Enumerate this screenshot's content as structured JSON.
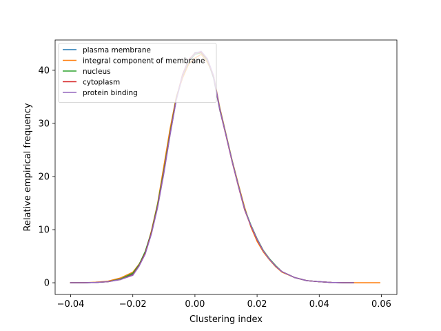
{
  "chart_data": {
    "type": "line",
    "title": "",
    "xlabel": "Clustering index",
    "ylabel": "Relative empirical frequency",
    "xlim": [
      -0.045,
      0.065
    ],
    "ylim": [
      -2.2,
      45.7
    ],
    "xticks": [
      -0.04,
      -0.02,
      0.0,
      0.02,
      0.04,
      0.06
    ],
    "xtick_labels": [
      "−0.04",
      "−0.02",
      "0.00",
      "0.02",
      "0.04",
      "0.06"
    ],
    "yticks": [
      0,
      10,
      20,
      30,
      40
    ],
    "ytick_labels": [
      "0",
      "10",
      "20",
      "30",
      "40"
    ],
    "grid": false,
    "legend_position": "top-left",
    "series": [
      {
        "name": "plasma membrane",
        "color": "#1f77b4",
        "x": [
          -0.04,
          -0.036,
          -0.032,
          -0.028,
          -0.024,
          -0.02,
          -0.018,
          -0.016,
          -0.014,
          -0.012,
          -0.01,
          -0.008,
          -0.006,
          -0.004,
          -0.002,
          0.0,
          0.002,
          0.004,
          0.006,
          0.008,
          0.01,
          0.012,
          0.014,
          0.016,
          0.018,
          0.02,
          0.022,
          0.024,
          0.026,
          0.028,
          0.032,
          0.036,
          0.04,
          0.044,
          0.048,
          0.051
        ],
        "y": [
          0.0,
          0.0,
          0.05,
          0.2,
          0.6,
          1.6,
          3.3,
          5.8,
          9.5,
          14.5,
          21.0,
          28.0,
          34.5,
          38.8,
          41.8,
          43.3,
          43.5,
          42.0,
          38.5,
          32.5,
          27.8,
          22.8,
          18.2,
          13.8,
          10.8,
          8.2,
          6.0,
          4.5,
          3.2,
          2.1,
          1.0,
          0.4,
          0.2,
          0.05,
          0.0,
          0.0
        ]
      },
      {
        "name": "integral component of membrane",
        "color": "#ff7f0e",
        "x": [
          -0.04,
          -0.036,
          -0.032,
          -0.028,
          -0.024,
          -0.02,
          -0.018,
          -0.016,
          -0.014,
          -0.012,
          -0.01,
          -0.008,
          -0.006,
          -0.004,
          -0.002,
          0.0,
          0.002,
          0.004,
          0.006,
          0.008,
          0.01,
          0.012,
          0.014,
          0.016,
          0.018,
          0.02,
          0.022,
          0.024,
          0.026,
          0.028,
          0.032,
          0.036,
          0.04,
          0.044,
          0.048,
          0.052,
          0.056,
          0.0595
        ],
        "y": [
          0.0,
          0.0,
          0.1,
          0.3,
          0.9,
          2.0,
          3.5,
          5.5,
          9.8,
          15.0,
          22.0,
          29.0,
          35.0,
          38.5,
          41.2,
          42.3,
          43.0,
          41.5,
          39.0,
          33.0,
          28.0,
          23.0,
          18.5,
          14.2,
          10.5,
          7.8,
          5.8,
          4.3,
          3.0,
          2.0,
          1.0,
          0.4,
          0.2,
          0.05,
          0.0,
          0.0,
          0.0,
          0.0
        ]
      },
      {
        "name": "nucleus",
        "color": "#2ca02c",
        "x": [
          -0.04,
          -0.036,
          -0.032,
          -0.028,
          -0.024,
          -0.02,
          -0.018,
          -0.016,
          -0.014,
          -0.012,
          -0.01,
          -0.008,
          -0.006,
          -0.004,
          -0.002,
          0.0,
          0.002,
          0.004,
          0.006,
          0.008,
          0.01,
          0.012,
          0.014,
          0.016,
          0.018,
          0.02,
          0.022,
          0.024,
          0.026,
          0.028,
          0.032,
          0.036,
          0.04,
          0.044,
          0.048,
          0.051
        ],
        "y": [
          0.0,
          0.0,
          0.05,
          0.2,
          0.7,
          1.8,
          3.4,
          5.9,
          9.6,
          14.8,
          21.2,
          28.3,
          34.8,
          39.0,
          41.6,
          43.0,
          43.3,
          41.9,
          38.7,
          32.8,
          27.9,
          22.9,
          18.3,
          13.9,
          10.9,
          8.3,
          6.1,
          4.5,
          3.2,
          2.1,
          1.0,
          0.4,
          0.2,
          0.05,
          0.0,
          0.0
        ]
      },
      {
        "name": "cytoplasm",
        "color": "#d62728",
        "x": [
          -0.04,
          -0.036,
          -0.032,
          -0.028,
          -0.024,
          -0.02,
          -0.018,
          -0.016,
          -0.014,
          -0.012,
          -0.01,
          -0.008,
          -0.006,
          -0.004,
          -0.002,
          0.0,
          0.002,
          0.004,
          0.006,
          0.008,
          0.01,
          0.012,
          0.014,
          0.016,
          0.018,
          0.02,
          0.022,
          0.024,
          0.026,
          0.028,
          0.032,
          0.036,
          0.04,
          0.044,
          0.048,
          0.051
        ],
        "y": [
          0.0,
          0.0,
          0.05,
          0.2,
          0.6,
          1.5,
          3.2,
          5.6,
          9.4,
          14.4,
          20.8,
          28.0,
          34.6,
          39.2,
          42.0,
          43.2,
          43.4,
          42.1,
          38.8,
          32.6,
          27.7,
          22.7,
          18.1,
          13.7,
          10.7,
          8.1,
          6.0,
          4.4,
          3.1,
          2.1,
          1.0,
          0.4,
          0.2,
          0.05,
          0.0,
          0.0
        ]
      },
      {
        "name": "protein binding",
        "color": "#9467bd",
        "x": [
          -0.04,
          -0.036,
          -0.032,
          -0.028,
          -0.024,
          -0.02,
          -0.018,
          -0.016,
          -0.014,
          -0.012,
          -0.01,
          -0.008,
          -0.006,
          -0.004,
          -0.002,
          0.0,
          0.002,
          0.004,
          0.006,
          0.008,
          0.01,
          0.012,
          0.014,
          0.016,
          0.018,
          0.02,
          0.022,
          0.024,
          0.026,
          0.028,
          0.032,
          0.036,
          0.04,
          0.044,
          0.048,
          0.051
        ],
        "y": [
          0.0,
          0.0,
          0.05,
          0.2,
          0.6,
          1.4,
          3.1,
          5.4,
          9.2,
          14.2,
          20.6,
          27.8,
          34.4,
          39.0,
          41.9,
          43.1,
          43.6,
          42.2,
          39.0,
          32.7,
          27.8,
          22.8,
          18.2,
          13.8,
          10.8,
          8.2,
          6.0,
          4.4,
          3.1,
          2.1,
          1.0,
          0.4,
          0.2,
          0.05,
          0.0,
          0.0
        ]
      }
    ]
  }
}
